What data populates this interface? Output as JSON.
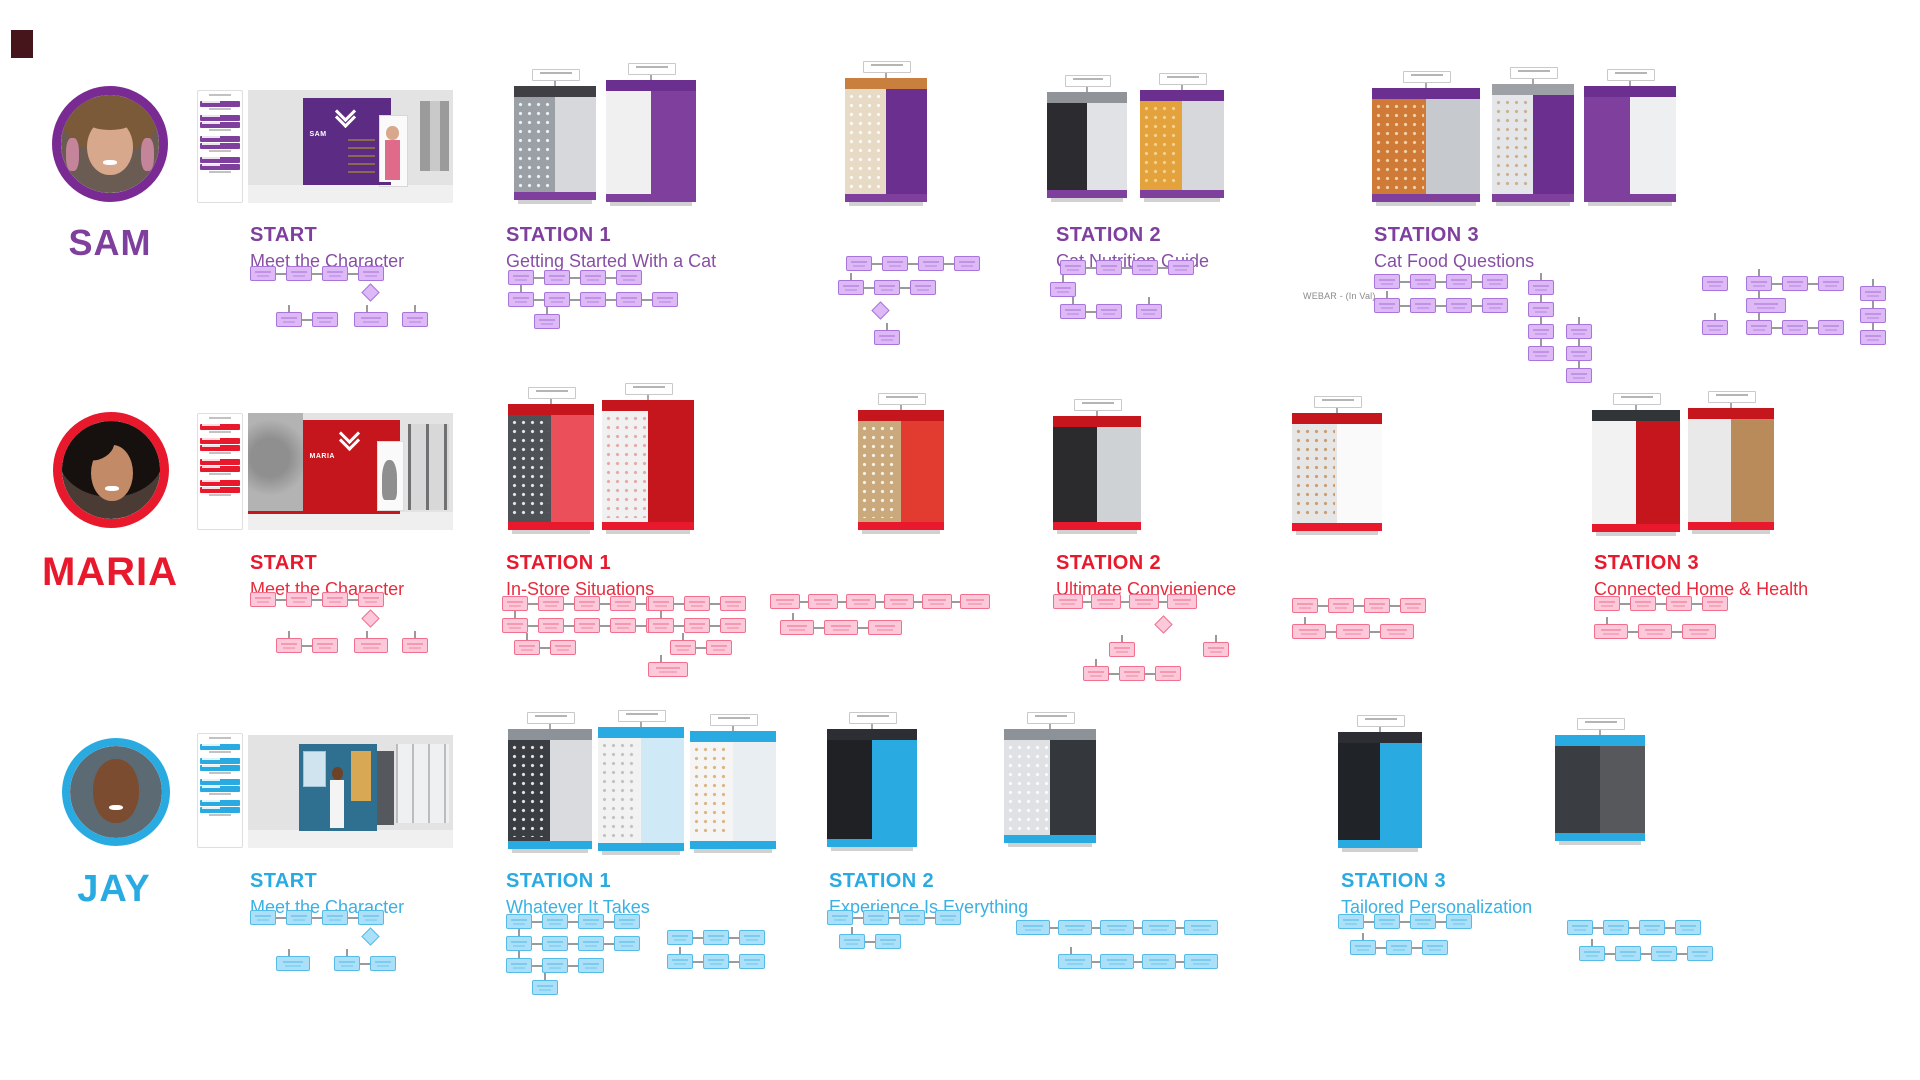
{
  "page": {
    "background": "#ffffff",
    "corner_mark_color": "#46141b"
  },
  "connector_color": "#9a9a9a",
  "rows": [
    {
      "name": "SAM",
      "theme": "#7E3F9D",
      "ring": "#7A2B93",
      "box_fill": "#DDB9F5",
      "box_border": "#A974DB",
      "wall_color": "#5C2C85",
      "wall_text": "SAM",
      "annotation": "WEBAR - (In Val)",
      "stops": [
        {
          "label": "START",
          "title": "Meet the Character"
        },
        {
          "label": "STATION 1",
          "title": "Getting Started With a Cat"
        },
        {
          "label": "STATION 2",
          "title": "Cat Nutrition Guide"
        },
        {
          "label": "STATION 3",
          "title": "Cat Food Questions"
        }
      ]
    },
    {
      "name": "MARIA",
      "theme": "#E8192C",
      "ring": "#E8192C",
      "box_fill": "#FBC9D9",
      "box_border": "#F2708E",
      "wall_color": "#C4161C",
      "wall_text": "MARIA",
      "annotation": "",
      "stops": [
        {
          "label": "START",
          "title": "Meet the Character"
        },
        {
          "label": "STATION 1",
          "title": "In-Store Situations"
        },
        {
          "label": "STATION 2",
          "title": "Ultimate Convienience"
        },
        {
          "label": "STATION 3",
          "title": "Connected Home & Health"
        }
      ]
    },
    {
      "name": "JAY",
      "theme": "#29ABE2",
      "ring": "#29ABE2",
      "box_fill": "#ABE0F8",
      "box_border": "#55BCE8",
      "wall_color": "#2F6F8F",
      "wall_text": "",
      "annotation": "",
      "stops": [
        {
          "label": "START",
          "title": "Meet the Character"
        },
        {
          "label": "STATION 1",
          "title": "Whatever It Takes"
        },
        {
          "label": "STATION 2",
          "title": "Experience Is Everything"
        },
        {
          "label": "STATION 3",
          "title": "Tailored Personalization"
        }
      ]
    }
  ]
}
